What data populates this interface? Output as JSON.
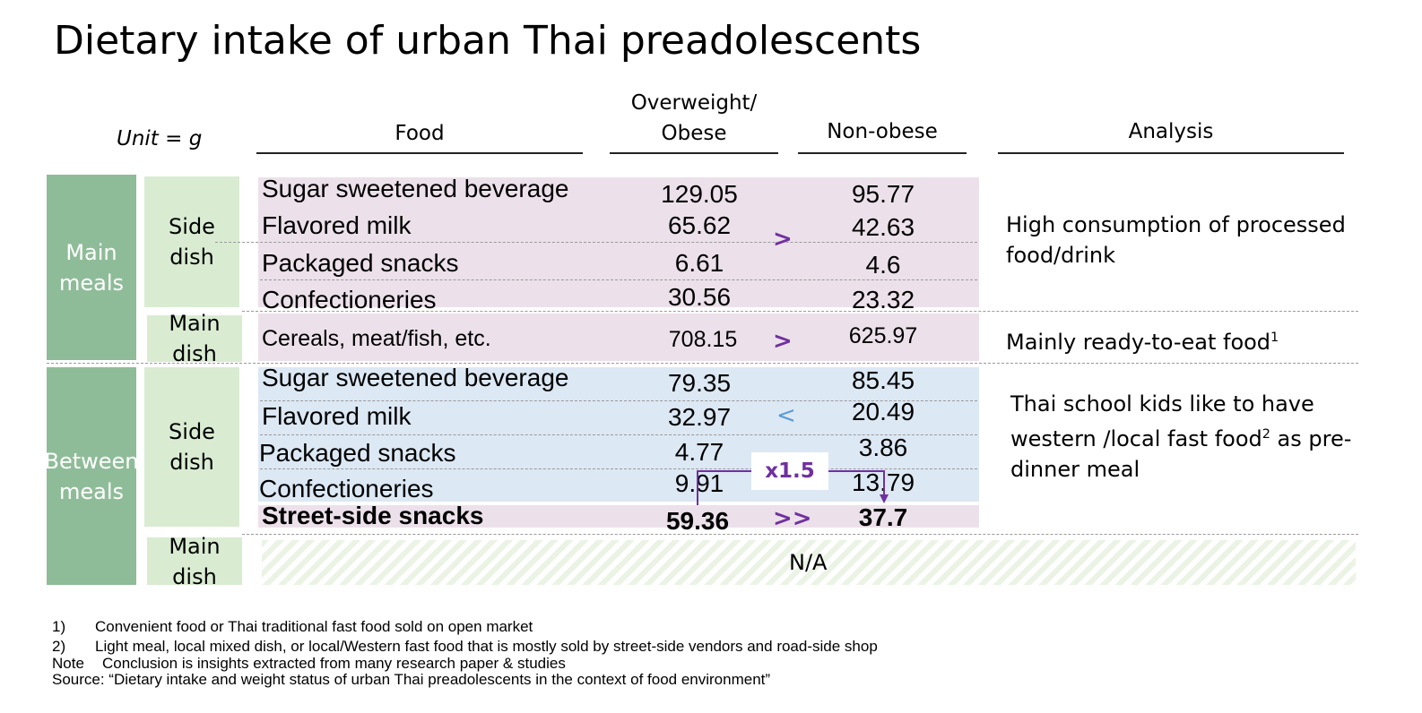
{
  "title": "Dietary intake of urban Thai preadolescents",
  "unit": "Unit = g",
  "headers": {
    "food": "Food",
    "overweight_line1": "Overweight/",
    "overweight_line2": "Obese",
    "nonobese": "Non-obese",
    "analysis": "Analysis"
  },
  "groups": {
    "main_meals": "Main\nmeals",
    "between_meals": "Between\nmeals",
    "side_dish": "Side\ndish",
    "main_dish": "Main\ndish"
  },
  "rows": [
    {
      "food": "Sugar sweetened beverage",
      "obese": "129.05",
      "nonobese": "95.77"
    },
    {
      "food": "Flavored milk",
      "obese": "65.62",
      "nonobese": "42.63"
    },
    {
      "food": "Packaged snacks",
      "obese": "6.61",
      "nonobese": "4.6"
    },
    {
      "food": "Confectioneries",
      "obese": "30.56",
      "nonobese": "23.32"
    },
    {
      "food": "Cereals, meat/fish, etc.",
      "obese": "708.15",
      "nonobese": "625.97"
    },
    {
      "food": "Sugar sweetened beverage",
      "obese": "79.35",
      "nonobese": "85.45"
    },
    {
      "food": "Flavored milk",
      "obese": "32.97",
      "nonobese": "20.49"
    },
    {
      "food": "Packaged snacks",
      "obese": "4.77",
      "nonobese": "3.86"
    },
    {
      "food": "Confectioneries",
      "obese": "9.91",
      "nonobese": "13.79"
    },
    {
      "food": "Street-side snacks",
      "obese": "59.36",
      "nonobese": "37.7"
    }
  ],
  "comparisons": {
    "main_side": ">",
    "main_main": ">",
    "between_side": "<",
    "street": ">>",
    "ratio": "x1.5"
  },
  "na": "N/A",
  "analysis": {
    "a1": "High consumption of processed food/drink",
    "a2": "Mainly ready-to-eat food",
    "a2_sup": "1",
    "a3_pre": "Thai school kids like to have western /local fast food",
    "a3_sup": "2",
    "a3_post": " as pre-dinner meal"
  },
  "footnotes": {
    "n1_num": "1)",
    "n1": "Convenient food or Thai traditional fast food sold on open market",
    "n2_num": "2)",
    "n2": "Light meal, local mixed dish, or local/Western fast food that is mostly sold by street-side vendors and road-side shop",
    "note_label": "Note",
    "note": "Conclusion is insights extracted from many research paper & studies",
    "source": "Source: “Dietary intake and weight status of urban Thai preadolescents in the context of food environment”"
  },
  "colors": {
    "group_green": "#8fbc98",
    "sub_green": "#d9ecd2",
    "pink_band": "#ece1ea",
    "blue_band": "#dce8f4",
    "purple": "#7030a0",
    "blue_arrow": "#5b9bd5"
  }
}
